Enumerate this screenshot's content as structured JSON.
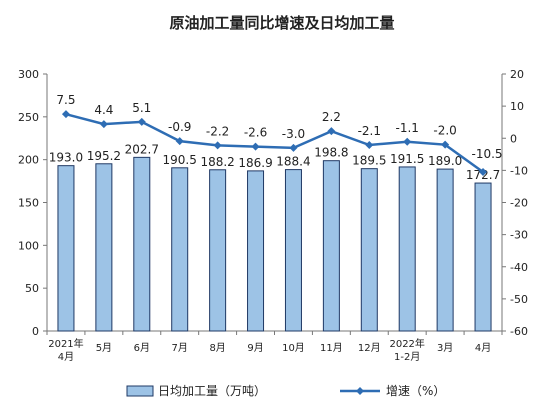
{
  "chart_data": {
    "type": "bar",
    "title": "原油加工量同比增速及日均加工量",
    "categories": [
      [
        "2021年",
        "4月"
      ],
      [
        "5月"
      ],
      [
        "6月"
      ],
      [
        "7月"
      ],
      [
        "8月"
      ],
      [
        "9月"
      ],
      [
        "10月"
      ],
      [
        "11月"
      ],
      [
        "12月"
      ],
      [
        "2022年",
        "1-2月"
      ],
      [
        "3月"
      ],
      [
        "4月"
      ]
    ],
    "series": [
      {
        "name": "日均加工量（万吨）",
        "kind": "bar",
        "axis": "left",
        "color": "#9dc3e6",
        "values": [
          193.0,
          195.2,
          202.7,
          190.5,
          188.2,
          186.9,
          188.4,
          198.8,
          189.5,
          191.5,
          189.0,
          172.7
        ],
        "labels": [
          "193.0",
          "195.2",
          "202.7",
          "190.5",
          "188.2",
          "186.9",
          "188.4",
          "198.8",
          "189.5",
          "191.5",
          "189.0",
          "172.7"
        ]
      },
      {
        "name": "增速（%）",
        "kind": "line",
        "axis": "right",
        "color": "#2e6db4",
        "values": [
          7.5,
          4.4,
          5.1,
          -0.9,
          -2.2,
          -2.6,
          -3.0,
          2.2,
          -2.1,
          -1.1,
          -2.0,
          -10.5
        ],
        "labels": [
          "7.5",
          "4.4",
          "5.1",
          "-0.9",
          "-2.2",
          "-2.6",
          "-3.0",
          "2.2",
          "-2.1",
          "-1.1",
          "-2.0",
          "-10.5"
        ]
      }
    ],
    "y_left": {
      "lim": [
        0,
        300
      ],
      "ticks": [
        "0",
        "50",
        "100",
        "150",
        "200",
        "250",
        "300"
      ]
    },
    "y_right": {
      "lim": [
        -60,
        20
      ],
      "ticks": [
        "-60",
        "-50",
        "-40",
        "-30",
        "-20",
        "-10",
        "0",
        "10",
        "20"
      ]
    },
    "legend_position": "bottom",
    "grid": false
  }
}
